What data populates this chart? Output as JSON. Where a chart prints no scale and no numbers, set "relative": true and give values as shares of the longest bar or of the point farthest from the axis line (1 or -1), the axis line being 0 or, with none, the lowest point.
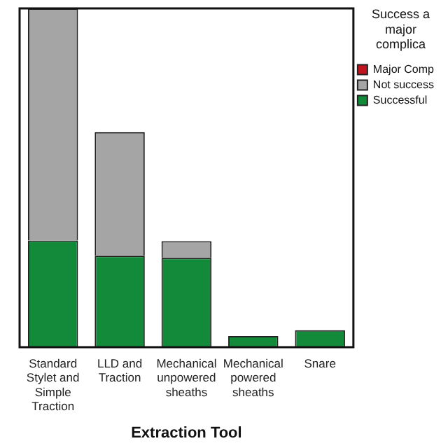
{
  "chart_data": {
    "type": "bar",
    "stacked": true,
    "relative": true,
    "xlabel": "Extraction Tool",
    "legend_title": "Success a major complica",
    "legend": "top right",
    "grid": false,
    "categories": [
      "Standard Stylet and Simple Traction",
      "LLD and Traction",
      "Mechanical unpowered sheaths",
      "Mechanical powered sheaths",
      "Snare"
    ],
    "series": [
      {
        "name": "Successful",
        "color": "#138a3a",
        "values": [
          0.315,
          0.27,
          0.264,
          0.033,
          0.05
        ]
      },
      {
        "name": "Not success",
        "color": "#a5a5a5",
        "values": [
          0.685,
          0.365,
          0.049,
          0,
          0
        ]
      },
      {
        "name": "Major Comp",
        "color": "#c0141e",
        "values": [
          0,
          0,
          0,
          0,
          0
        ]
      }
    ]
  }
}
